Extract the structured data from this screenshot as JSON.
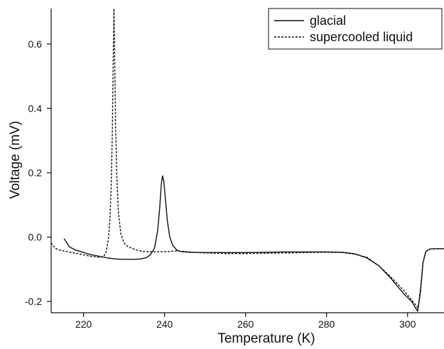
{
  "chart_data": {
    "type": "line",
    "xlabel": "Temperature  (K)",
    "ylabel": "Voltage  (mV)",
    "xlim": [
      212,
      309
    ],
    "ylim": [
      -0.235,
      0.71
    ],
    "xticks": [
      220,
      240,
      260,
      280,
      300
    ],
    "yticks": [
      -0.2,
      0.0,
      0.2,
      0.4,
      0.6
    ],
    "xtick_labels": [
      "220",
      "240",
      "260",
      "280",
      "300"
    ],
    "ytick_labels": [
      "-0.2",
      "0.0",
      "0.2",
      "0.4",
      "0.6"
    ],
    "grid": false,
    "legend_position": "top-right",
    "series": [
      {
        "name": "glacial",
        "style": "solid",
        "color": "#111111",
        "points": [
          [
            215.2,
            -0.005
          ],
          [
            216.5,
            -0.03
          ],
          [
            218,
            -0.04
          ],
          [
            220,
            -0.048
          ],
          [
            222,
            -0.055
          ],
          [
            224,
            -0.06
          ],
          [
            226,
            -0.065
          ],
          [
            228,
            -0.068
          ],
          [
            230,
            -0.069
          ],
          [
            232,
            -0.069
          ],
          [
            234,
            -0.068
          ],
          [
            235.5,
            -0.064
          ],
          [
            236.5,
            -0.055
          ],
          [
            237.5,
            -0.035
          ],
          [
            238.3,
            0.02
          ],
          [
            238.8,
            0.09
          ],
          [
            239.2,
            0.165
          ],
          [
            239.5,
            0.19
          ],
          [
            239.8,
            0.175
          ],
          [
            240.2,
            0.12
          ],
          [
            240.7,
            0.05
          ],
          [
            241.3,
            0.0
          ],
          [
            242,
            -0.025
          ],
          [
            243,
            -0.04
          ],
          [
            244,
            -0.045
          ],
          [
            246,
            -0.047
          ],
          [
            250,
            -0.048
          ],
          [
            255,
            -0.048
          ],
          [
            260,
            -0.048
          ],
          [
            265,
            -0.047
          ],
          [
            270,
            -0.046
          ],
          [
            275,
            -0.046
          ],
          [
            280,
            -0.046
          ],
          [
            284,
            -0.047
          ],
          [
            287,
            -0.052
          ],
          [
            290,
            -0.065
          ],
          [
            293,
            -0.09
          ],
          [
            296,
            -0.13
          ],
          [
            299,
            -0.175
          ],
          [
            301,
            -0.2
          ],
          [
            302.5,
            -0.23
          ],
          [
            303.2,
            -0.17
          ],
          [
            303.8,
            -0.08
          ],
          [
            304.5,
            -0.045
          ],
          [
            305.5,
            -0.037
          ],
          [
            307,
            -0.036
          ],
          [
            309,
            -0.036
          ]
        ]
      },
      {
        "name": "supercooled liquid",
        "style": "dashed",
        "color": "#111111",
        "points": [
          [
            212,
            -0.018
          ],
          [
            213,
            -0.035
          ],
          [
            214,
            -0.04
          ],
          [
            216,
            -0.045
          ],
          [
            218,
            -0.05
          ],
          [
            220,
            -0.055
          ],
          [
            222,
            -0.06
          ],
          [
            224,
            -0.063
          ],
          [
            225,
            -0.06
          ],
          [
            225.6,
            -0.045
          ],
          [
            226.1,
            -0.01
          ],
          [
            226.5,
            0.05
          ],
          [
            226.8,
            0.15
          ],
          [
            227.1,
            0.32
          ],
          [
            227.3,
            0.52
          ],
          [
            227.5,
            0.71
          ],
          [
            227.7,
            0.55
          ],
          [
            227.9,
            0.36
          ],
          [
            228.2,
            0.19
          ],
          [
            228.6,
            0.08
          ],
          [
            229.2,
            0.01
          ],
          [
            230,
            -0.018
          ],
          [
            231,
            -0.03
          ],
          [
            233,
            -0.04
          ],
          [
            235,
            -0.045
          ],
          [
            238,
            -0.046
          ],
          [
            241,
            -0.045
          ],
          [
            243,
            -0.043
          ],
          [
            245,
            -0.045
          ],
          [
            248,
            -0.048
          ],
          [
            252,
            -0.05
          ],
          [
            256,
            -0.051
          ],
          [
            260,
            -0.051
          ],
          [
            265,
            -0.05
          ],
          [
            270,
            -0.049
          ],
          [
            275,
            -0.048
          ],
          [
            280,
            -0.047
          ],
          [
            284,
            -0.048
          ],
          [
            287,
            -0.053
          ],
          [
            290,
            -0.063
          ],
          [
            293,
            -0.09
          ],
          [
            296,
            -0.125
          ],
          [
            299,
            -0.165
          ],
          [
            301,
            -0.195
          ],
          [
            302.6,
            -0.22
          ],
          [
            303.2,
            -0.16
          ],
          [
            303.8,
            -0.08
          ],
          [
            304.5,
            -0.045
          ],
          [
            305.5,
            -0.037
          ],
          [
            307,
            -0.036
          ],
          [
            309,
            -0.036
          ]
        ]
      }
    ]
  }
}
